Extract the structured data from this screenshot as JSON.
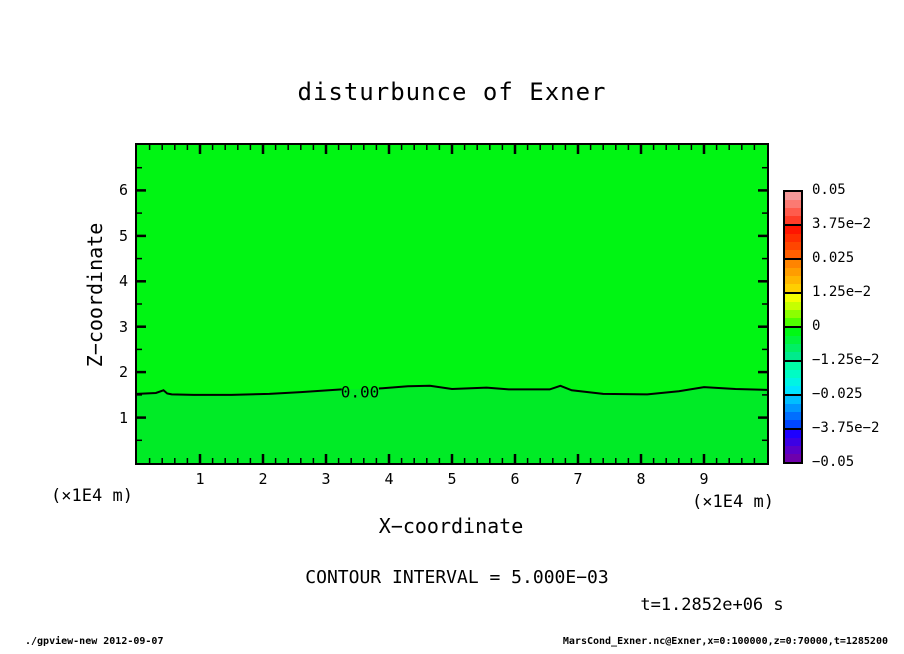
{
  "title": "disturbunce of Exner",
  "axes": {
    "xlabel": "X−coordinate",
    "ylabel": "Z−coordinate",
    "x_unit_left": "(×1E4 m)",
    "x_unit_right": "(×1E4 m)"
  },
  "annotations": {
    "contour_interval": "CONTOUR INTERVAL = 5.000E−03",
    "time_label": "t=1.2852e+06 s"
  },
  "footer": {
    "left": "./gpview-new  2012-09-07",
    "right": "MarsCond_Exner.nc@Exner,x=0:100000,z=0:70000,t=1285200"
  },
  "chart_data": {
    "type": "heatmap",
    "title": "disturbunce of Exner",
    "xlabel": "X−coordinate",
    "ylabel": "Z−coordinate",
    "x_unit": "(×1E4 m)",
    "y_unit": "(×1E4 m)",
    "xlim": [
      0,
      10
    ],
    "ylim": [
      0,
      7
    ],
    "x_ticks": [
      1,
      2,
      3,
      4,
      5,
      6,
      7,
      8,
      9
    ],
    "y_ticks": [
      1,
      2,
      3,
      4,
      5,
      6
    ],
    "x_minor_step": 0.2,
    "y_minor_step": 0.5,
    "grid": false,
    "contour_interval": 0.005,
    "field_note": "field is within ±0.005 of zero everywhere; single 0.00 contour near z≈1.5e4 m",
    "fill_above_zero": "#00F513",
    "fill_below_zero": "#00EB26",
    "zero_contour": {
      "label": "0.00",
      "label_x": 3.54,
      "label_z": 1.57,
      "gap": [
        3.25,
        3.84
      ],
      "x": [
        0,
        0.3,
        0.42,
        0.48,
        0.55,
        0.9,
        1.5,
        2.1,
        2.6,
        3.25,
        3.84,
        4.3,
        4.65,
        5.0,
        5.55,
        5.9,
        6.55,
        6.72,
        6.9,
        7.4,
        8.1,
        8.6,
        9.0,
        9.5,
        10.0
      ],
      "z": [
        1.52,
        1.54,
        1.6,
        1.53,
        1.51,
        1.5,
        1.5,
        1.52,
        1.56,
        1.62,
        1.64,
        1.69,
        1.7,
        1.63,
        1.66,
        1.62,
        1.62,
        1.7,
        1.6,
        1.52,
        1.51,
        1.58,
        1.67,
        1.63,
        1.61
      ]
    },
    "colorbar": {
      "position": "right",
      "labels": [
        "0.05",
        "3.75e−2",
        "0.025",
        "1.25e−2",
        "0",
        "−1.25e−2",
        "−0.025",
        "−3.75e−2",
        "−0.05"
      ],
      "values": [
        0.05,
        0.0375,
        0.025,
        0.0125,
        0,
        -0.0125,
        -0.025,
        -0.0375,
        -0.05
      ],
      "box_gradients": [
        [
          "#F59898",
          "#FB7A72",
          "#FF5B4C",
          "#FF3D28"
        ],
        [
          "#FF1500",
          "#FF2E00",
          "#FF4600",
          "#FF5F00"
        ],
        [
          "#FF8400",
          "#FF9D00",
          "#FFB600",
          "#FFCF00"
        ],
        [
          "#F2FF00",
          "#C6FF00",
          "#8CFF00",
          "#4FFF00"
        ],
        [
          "#00F914",
          "#00F43C",
          "#00EF64",
          "#00EA8C"
        ],
        [
          "#00FCA4",
          "#00FCC4",
          "#00F4E4",
          "#00E4FF"
        ],
        [
          "#00BEFF",
          "#0096FF",
          "#006EFF",
          "#0046FF"
        ],
        [
          "#1E00FF",
          "#3C00E4",
          "#5A00C8",
          "#6E00AC"
        ]
      ]
    }
  }
}
